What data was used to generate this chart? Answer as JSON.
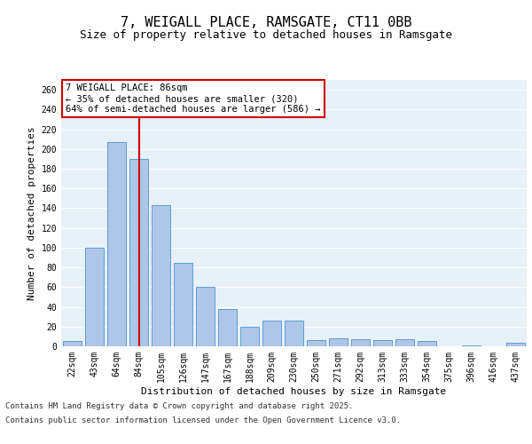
{
  "title": "7, WEIGALL PLACE, RAMSGATE, CT11 0BB",
  "subtitle": "Size of property relative to detached houses in Ramsgate",
  "xlabel": "Distribution of detached houses by size in Ramsgate",
  "ylabel": "Number of detached properties",
  "bar_color": "#aec6e8",
  "bar_edge_color": "#5a9fd4",
  "background_color": "#e8f0f8",
  "grid_color": "#ffffff",
  "categories": [
    "22sqm",
    "43sqm",
    "64sqm",
    "84sqm",
    "105sqm",
    "126sqm",
    "147sqm",
    "167sqm",
    "188sqm",
    "209sqm",
    "230sqm",
    "250sqm",
    "271sqm",
    "292sqm",
    "313sqm",
    "333sqm",
    "354sqm",
    "375sqm",
    "396sqm",
    "416sqm",
    "437sqm"
  ],
  "values": [
    5,
    100,
    207,
    190,
    143,
    85,
    60,
    38,
    20,
    26,
    26,
    6,
    8,
    7,
    6,
    7,
    5,
    0,
    1,
    0,
    4
  ],
  "ylim": [
    0,
    270
  ],
  "yticks": [
    0,
    20,
    40,
    60,
    80,
    100,
    120,
    140,
    160,
    180,
    200,
    220,
    240,
    260
  ],
  "vline_x": 3,
  "vline_color": "#cc0000",
  "annotation_text": "7 WEIGALL PLACE: 86sqm\n← 35% of detached houses are smaller (320)\n64% of semi-detached houses are larger (586) →",
  "annotation_box_color": "#ffffff",
  "annotation_box_edge_color": "#cc0000",
  "footer_line1": "Contains HM Land Registry data © Crown copyright and database right 2025.",
  "footer_line2": "Contains public sector information licensed under the Open Government Licence v3.0.",
  "title_fontsize": 11,
  "subtitle_fontsize": 9,
  "axis_label_fontsize": 8,
  "tick_fontsize": 7,
  "annotation_fontsize": 7.5,
  "footer_fontsize": 6.5
}
